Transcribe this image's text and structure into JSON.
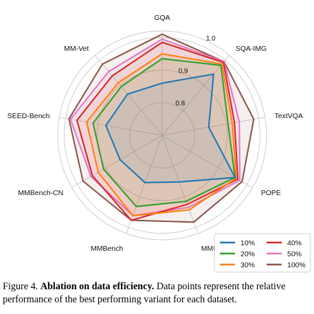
{
  "chart_data": {
    "type": "radar",
    "axes": [
      "GQA",
      "SQA-IMG",
      "TextVQA",
      "POPE",
      "MME",
      "MMBench",
      "MMBench-CN",
      "SEED-Bench",
      "MM-Vet"
    ],
    "rlim": [
      0.7,
      1.02
    ],
    "rticks": [
      {
        "value": 0.8,
        "label": "0.8"
      },
      {
        "value": 0.9,
        "label": "0.9"
      },
      {
        "value": 1.0,
        "label": "1.0"
      }
    ],
    "grid": true,
    "legend_position": "bottom-right",
    "series": [
      {
        "name": "10%",
        "color": "#1f77b4",
        "values": [
          0.86,
          0.945,
          0.845,
          0.958,
          0.852,
          0.854,
          0.849,
          0.875,
          0.865
        ]
      },
      {
        "name": "20%",
        "color": "#2ca02c",
        "values": [
          0.935,
          0.98,
          0.905,
          0.958,
          0.915,
          0.932,
          0.907,
          0.915,
          0.895
        ]
      },
      {
        "name": "30%",
        "color": "#ff7f0e",
        "values": [
          0.95,
          0.985,
          0.918,
          0.962,
          0.943,
          0.962,
          0.926,
          0.935,
          0.91
        ]
      },
      {
        "name": "40%",
        "color": "#d62728",
        "values": [
          0.985,
          0.992,
          0.925,
          0.968,
          0.925,
          0.977,
          0.947,
          0.965,
          0.938
        ]
      },
      {
        "name": "50%",
        "color": "#e377c2",
        "values": [
          0.995,
          0.995,
          0.94,
          0.975,
          0.935,
          0.962,
          0.952,
          0.985,
          0.955
        ]
      },
      {
        "name": "100%",
        "color": "#8c564b",
        "values": [
          1.01,
          0.995,
          0.985,
          0.983,
          0.983,
          0.977,
          0.98,
          0.99,
          0.985
        ]
      }
    ]
  },
  "caption": {
    "figure_label": "Figure 4.",
    "bold_title": "Ablation on data efficiency.",
    "text": "Data points represent the relative performance of the best performing variant for each dataset."
  }
}
